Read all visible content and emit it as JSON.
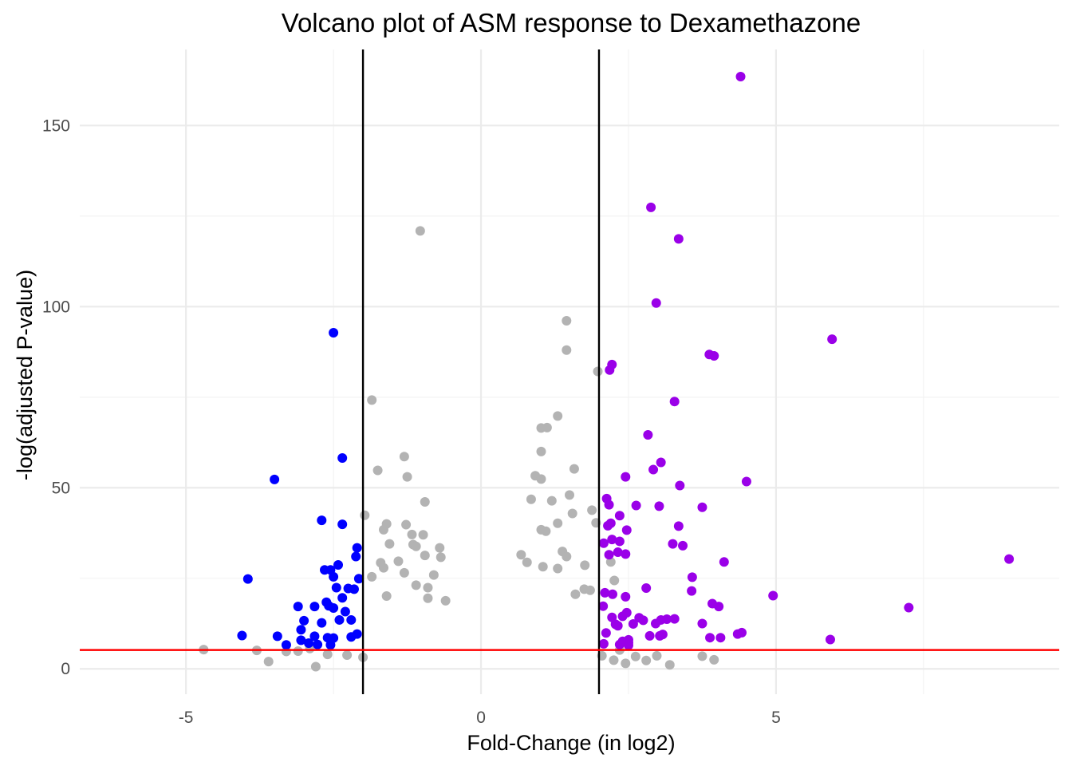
{
  "chart_data": {
    "type": "scatter",
    "title": "Volcano plot of ASM response to Dexamethazone",
    "xlabel": "Fold-Change (in log2)",
    "ylabel": "-log(adjusted P-value)",
    "xlim": [
      -6.8,
      9.8
    ],
    "ylim": [
      -7,
      171
    ],
    "x_ticks": [
      -5,
      0,
      5
    ],
    "x_tick_labels": [
      "-5",
      "0",
      "5"
    ],
    "y_ticks": [
      0,
      50,
      100,
      150
    ],
    "y_tick_labels": [
      "0",
      "50",
      "100",
      "150"
    ],
    "grid": true,
    "legend": "none",
    "thresholds": {
      "vertical_lines": [
        -2,
        2
      ],
      "vertical_color": "#000000",
      "horizontal_line": 5.2,
      "horizontal_color": "#ff0000"
    },
    "colors": {
      "down": "#0000ff",
      "up": "#9a00e8",
      "not_significant": "#b3b3b3"
    },
    "series": [
      {
        "group": "down",
        "points": [
          [
            -2.5,
            92.8
          ],
          [
            -2.35,
            58.2
          ],
          [
            -3.5,
            52.3
          ],
          [
            -2.7,
            41
          ],
          [
            -2.35,
            39.9
          ],
          [
            -2.1,
            33.4
          ],
          [
            -3.95,
            24.8
          ],
          [
            -2.65,
            27.3
          ],
          [
            -2.55,
            27.3
          ],
          [
            -2.42,
            28.7
          ],
          [
            -2.5,
            25.4
          ],
          [
            -2.07,
            24.9
          ],
          [
            -2.25,
            22.2
          ],
          [
            -2.45,
            22.4
          ],
          [
            -2.15,
            22
          ],
          [
            -2.35,
            19.6
          ],
          [
            -2.62,
            18.4
          ],
          [
            -2.82,
            17.2
          ],
          [
            -2.58,
            17.4
          ],
          [
            -2.5,
            16.8
          ],
          [
            -2.3,
            15.8
          ],
          [
            -2.2,
            13.5
          ],
          [
            -2.4,
            13.5
          ],
          [
            -2.7,
            12.7
          ],
          [
            -3.0,
            13.3
          ],
          [
            -3.05,
            10.8
          ],
          [
            -2.82,
            9
          ],
          [
            -2.5,
            8.5
          ],
          [
            -2.2,
            8.8
          ],
          [
            -2.1,
            9.6
          ],
          [
            -3.45,
            9
          ],
          [
            -2.6,
            8.6
          ],
          [
            -3.05,
            7.9
          ],
          [
            -2.92,
            7.1
          ],
          [
            -3.3,
            6.6
          ],
          [
            -2.77,
            6.7
          ],
          [
            -2.55,
            6.6
          ],
          [
            -4.05,
            9.2
          ],
          [
            -3.1,
            17.2
          ],
          [
            -2.12,
            31
          ]
        ]
      },
      {
        "group": "up",
        "points": [
          [
            4.4,
            163.5
          ],
          [
            2.88,
            127.4
          ],
          [
            3.35,
            118.7
          ],
          [
            2.97,
            101
          ],
          [
            5.95,
            91
          ],
          [
            3.87,
            86.8
          ],
          [
            3.95,
            86.4
          ],
          [
            2.22,
            84
          ],
          [
            2.18,
            82.5
          ],
          [
            3.28,
            73.8
          ],
          [
            2.83,
            64.6
          ],
          [
            3.05,
            57
          ],
          [
            2.92,
            55
          ],
          [
            4.5,
            51.7
          ],
          [
            2.45,
            53
          ],
          [
            3.37,
            50.6
          ],
          [
            2.13,
            47
          ],
          [
            2.63,
            45.1
          ],
          [
            3.02,
            44.9
          ],
          [
            3.75,
            44.6
          ],
          [
            2.17,
            45.3
          ],
          [
            2.35,
            42.3
          ],
          [
            2.2,
            40.2
          ],
          [
            3.35,
            39.4
          ],
          [
            2.15,
            39.5
          ],
          [
            2.47,
            38.3
          ],
          [
            3.25,
            34.5
          ],
          [
            3.42,
            34
          ],
          [
            2.22,
            35.7
          ],
          [
            2.35,
            35.2
          ],
          [
            2.08,
            34.7
          ],
          [
            2.32,
            32.2
          ],
          [
            2.45,
            31.7
          ],
          [
            2.17,
            31.5
          ],
          [
            4.12,
            29.5
          ],
          [
            3.58,
            25.3
          ],
          [
            8.95,
            30.3
          ],
          [
            2.8,
            22.3
          ],
          [
            3.57,
            21.5
          ],
          [
            2.1,
            21
          ],
          [
            2.23,
            20.6
          ],
          [
            2.45,
            19.9
          ],
          [
            4.95,
            20.2
          ],
          [
            3.92,
            18
          ],
          [
            4.03,
            17.2
          ],
          [
            7.25,
            16.9
          ],
          [
            2.07,
            17.3
          ],
          [
            2.47,
            15.5
          ],
          [
            2.22,
            14.2
          ],
          [
            2.4,
            14.5
          ],
          [
            2.68,
            14.1
          ],
          [
            3.28,
            13.8
          ],
          [
            3.15,
            13.7
          ],
          [
            2.75,
            13.4
          ],
          [
            3.05,
            13.5
          ],
          [
            2.28,
            12.3
          ],
          [
            2.32,
            11.9
          ],
          [
            2.96,
            12.5
          ],
          [
            3.75,
            12.5
          ],
          [
            2.58,
            12.4
          ],
          [
            2.12,
            9.9
          ],
          [
            4.35,
            9.6
          ],
          [
            4.42,
            10
          ],
          [
            4.06,
            8.6
          ],
          [
            3.88,
            8.6
          ],
          [
            2.86,
            9.1
          ],
          [
            3.03,
            9.1
          ],
          [
            3.08,
            9.5
          ],
          [
            2.5,
            8
          ],
          [
            2.4,
            7.6
          ],
          [
            2.5,
            7.2
          ],
          [
            2.35,
            6.7
          ],
          [
            2.5,
            6.5
          ],
          [
            2.08,
            6.9
          ],
          [
            5.92,
            8.1
          ]
        ]
      },
      {
        "group": "not_significant",
        "points": [
          [
            -1.03,
            120.9
          ],
          [
            1.45,
            96.1
          ],
          [
            1.45,
            88
          ],
          [
            1.98,
            82.1
          ],
          [
            -1.85,
            74.2
          ],
          [
            1.3,
            69.8
          ],
          [
            1.02,
            66.5
          ],
          [
            1.12,
            66.6
          ],
          [
            1.02,
            60
          ],
          [
            -1.3,
            58.6
          ],
          [
            -1.75,
            54.8
          ],
          [
            1.58,
            55.2
          ],
          [
            -1.25,
            53
          ],
          [
            0.92,
            53.3
          ],
          [
            1.02,
            52.4
          ],
          [
            1.5,
            48
          ],
          [
            -0.95,
            46.1
          ],
          [
            0.85,
            46.8
          ],
          [
            1.2,
            46.4
          ],
          [
            1.88,
            43.8
          ],
          [
            -1.97,
            42.4
          ],
          [
            1.55,
            42.9
          ],
          [
            -1.65,
            38.4
          ],
          [
            -1.27,
            39.8
          ],
          [
            -1.6,
            40
          ],
          [
            -0.98,
            37
          ],
          [
            1.3,
            40.2
          ],
          [
            1.1,
            38
          ],
          [
            1.02,
            38.4
          ],
          [
            1.95,
            40.3
          ],
          [
            -1.17,
            37.1
          ],
          [
            -1.55,
            34.5
          ],
          [
            -1.15,
            34.3
          ],
          [
            -1.1,
            33.8
          ],
          [
            -0.7,
            33.4
          ],
          [
            -0.95,
            31.3
          ],
          [
            -0.68,
            30.8
          ],
          [
            -1.4,
            29.7
          ],
          [
            0.68,
            31.5
          ],
          [
            0.78,
            29.4
          ],
          [
            1.38,
            32.4
          ],
          [
            1.45,
            31
          ],
          [
            -1.7,
            29.3
          ],
          [
            -1.65,
            27.9
          ],
          [
            1.05,
            28.2
          ],
          [
            1.3,
            27.7
          ],
          [
            1.76,
            28.6
          ],
          [
            -1.3,
            26.5
          ],
          [
            -0.8,
            25.9
          ],
          [
            -1.1,
            23.1
          ],
          [
            -0.9,
            22.4
          ],
          [
            -1.85,
            25.4
          ],
          [
            1.75,
            22
          ],
          [
            1.6,
            20.6
          ],
          [
            1.85,
            21.7
          ],
          [
            2.2,
            29.5
          ],
          [
            2.26,
            24.4
          ],
          [
            -1.6,
            20.1
          ],
          [
            -0.6,
            18.8
          ],
          [
            -0.9,
            19.5
          ],
          [
            -2.27,
            3.8
          ],
          [
            -2.0,
            3.2
          ],
          [
            -3.6,
            2
          ],
          [
            -3.3,
            4.8
          ],
          [
            -3.8,
            5.1
          ],
          [
            -4.7,
            5.3
          ],
          [
            -2.9,
            5.6
          ],
          [
            -2.8,
            0.6
          ],
          [
            -3.1,
            4.9
          ],
          [
            -2.6,
            4
          ],
          [
            3.2,
            1.1
          ],
          [
            3.75,
            3.5
          ],
          [
            3.95,
            2.5
          ],
          [
            2.98,
            3.6
          ],
          [
            2.62,
            3.4
          ],
          [
            2.25,
            2.4
          ],
          [
            2.45,
            1.5
          ],
          [
            2.05,
            3.6
          ],
          [
            2.35,
            5.2
          ],
          [
            2.8,
            2.3
          ]
        ]
      }
    ]
  }
}
